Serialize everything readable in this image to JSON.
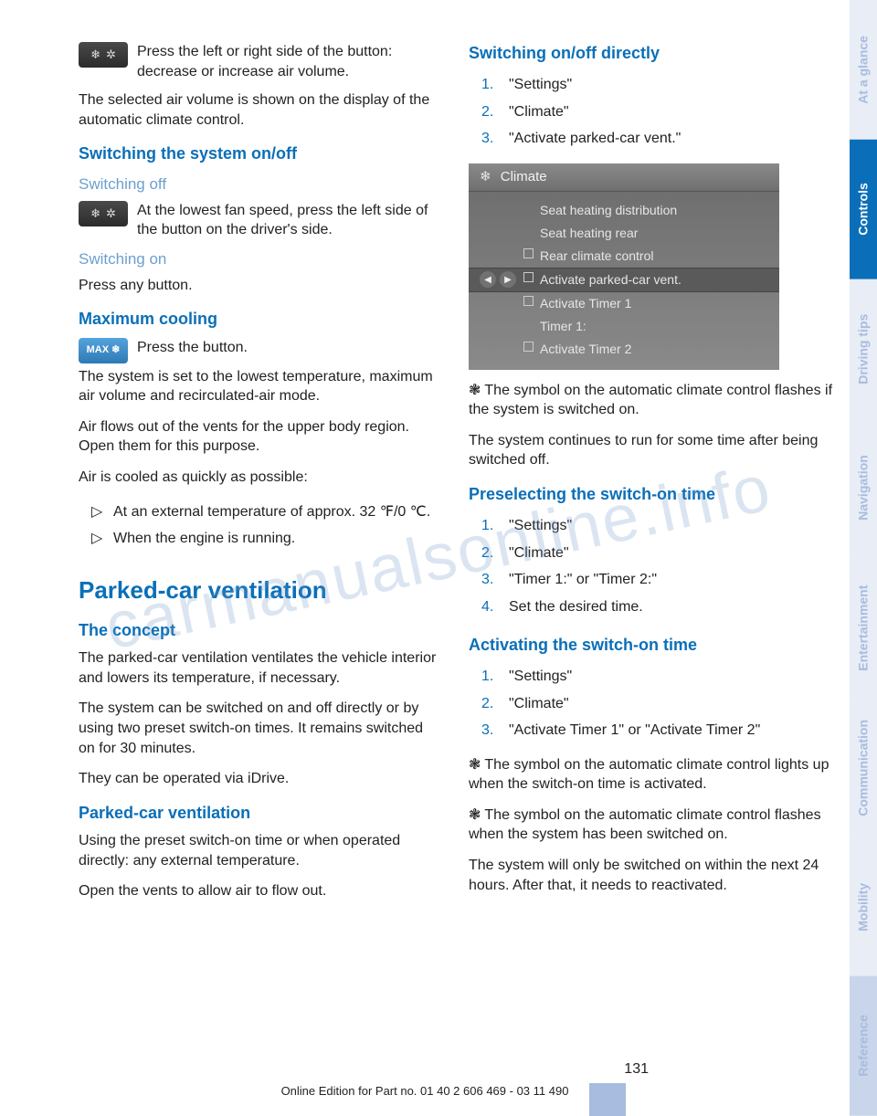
{
  "watermark": "carmanualsonline.info",
  "sidebar": {
    "tabs": [
      {
        "label": "At a glance",
        "active": false
      },
      {
        "label": "Controls",
        "active": true
      },
      {
        "label": "Driving tips",
        "active": false
      },
      {
        "label": "Navigation",
        "active": false
      },
      {
        "label": "Entertainment",
        "active": false
      },
      {
        "label": "Communication",
        "active": false
      },
      {
        "label": "Mobility",
        "active": false
      },
      {
        "label": "Reference",
        "active": false
      }
    ]
  },
  "left": {
    "intro_icon_text": "Press the left or right side of the button: decrease or increase air volume.",
    "intro_para": "The selected air volume is shown on the display of the automatic climate control.",
    "h_switch_onoff": "Switching the system on/off",
    "h_switch_off": "Switching off",
    "switch_off_text": "At the lowest fan speed, press the left side of the button on the driver's side.",
    "h_switch_on": "Switching on",
    "switch_on_text": "Press any button.",
    "h_max_cool": "Maximum cooling",
    "max_cool_btn": "MAX ❄",
    "max_cool_p1": "Press the button.",
    "max_cool_p2": "The system is set to the lowest temperature, maximum air volume and recirculated-air mode.",
    "max_cool_p3": "Air flows out of the vents for the upper body region. Open them for this purpose.",
    "max_cool_p4": "Air is cooled as quickly as possible:",
    "max_cool_li1": "At an external temperature of approx. 32 ℉/0 ℃.",
    "max_cool_li2": "When the engine is running.",
    "h_parked": "Parked-car ventilation",
    "h_concept": "The concept",
    "concept_p1": "The parked-car ventilation ventilates the vehicle interior and lowers its temperature, if necessary.",
    "concept_p2": "The system can be switched on and off directly or by using two preset switch-on times. It remains switched on for 30 minutes.",
    "concept_p3": "They can be operated via iDrive.",
    "h_pcv": "Parked-car ventilation",
    "pcv_p1": "Using the preset switch-on time or when operated directly: any external temperature.",
    "pcv_p2": "Open the vents to allow air to flow out."
  },
  "right": {
    "h_direct": "Switching on/off directly",
    "steps_direct": [
      "\"Settings\"",
      "\"Climate\"",
      "\"Activate parked-car vent.\""
    ],
    "screenshot": {
      "title": "Climate",
      "lines": [
        {
          "text": "Seat heating distribution",
          "checkbox": false,
          "selected": false
        },
        {
          "text": "Seat heating rear",
          "checkbox": false,
          "selected": false
        },
        {
          "text": "Rear climate control",
          "checkbox": true,
          "selected": false
        },
        {
          "text": "Activate parked-car vent.",
          "checkbox": true,
          "selected": true
        },
        {
          "text": "Activate Timer 1",
          "checkbox": true,
          "selected": false
        },
        {
          "text": "Timer 1:",
          "checkbox": false,
          "selected": false
        },
        {
          "text": "Activate Timer 2",
          "checkbox": true,
          "selected": false
        }
      ]
    },
    "direct_p1": "The symbol on the automatic climate control flashes if the system is switched on.",
    "direct_p2": "The system continues to run for some time after being switched off.",
    "h_preselect": "Preselecting the switch-on time",
    "steps_preselect": [
      "\"Settings\"",
      "\"Climate\"",
      "\"Timer 1:\" or \"Timer 2:\"",
      "Set the desired time."
    ],
    "h_activate": "Activating the switch-on time",
    "steps_activate": [
      "\"Settings\"",
      "\"Climate\"",
      "\"Activate Timer 1\" or \"Activate Timer 2\""
    ],
    "act_p1": "The symbol on the automatic climate control lights up when the switch-on time is activated.",
    "act_p2": "The symbol on the automatic climate control flashes when the system has been switched on.",
    "act_p3": "The system will only be switched on within the next 24 hours. After that, it needs to reactivated."
  },
  "footer": {
    "page": "131",
    "edition": "Online Edition for Part no. 01 40 2 606 469 - 03 11 490"
  },
  "colors": {
    "brand_blue": "#0a6fb8",
    "light_blue": "#6c9fcf",
    "tab_bg": "#e8edf6",
    "tab_text": "#a8bcdf"
  }
}
